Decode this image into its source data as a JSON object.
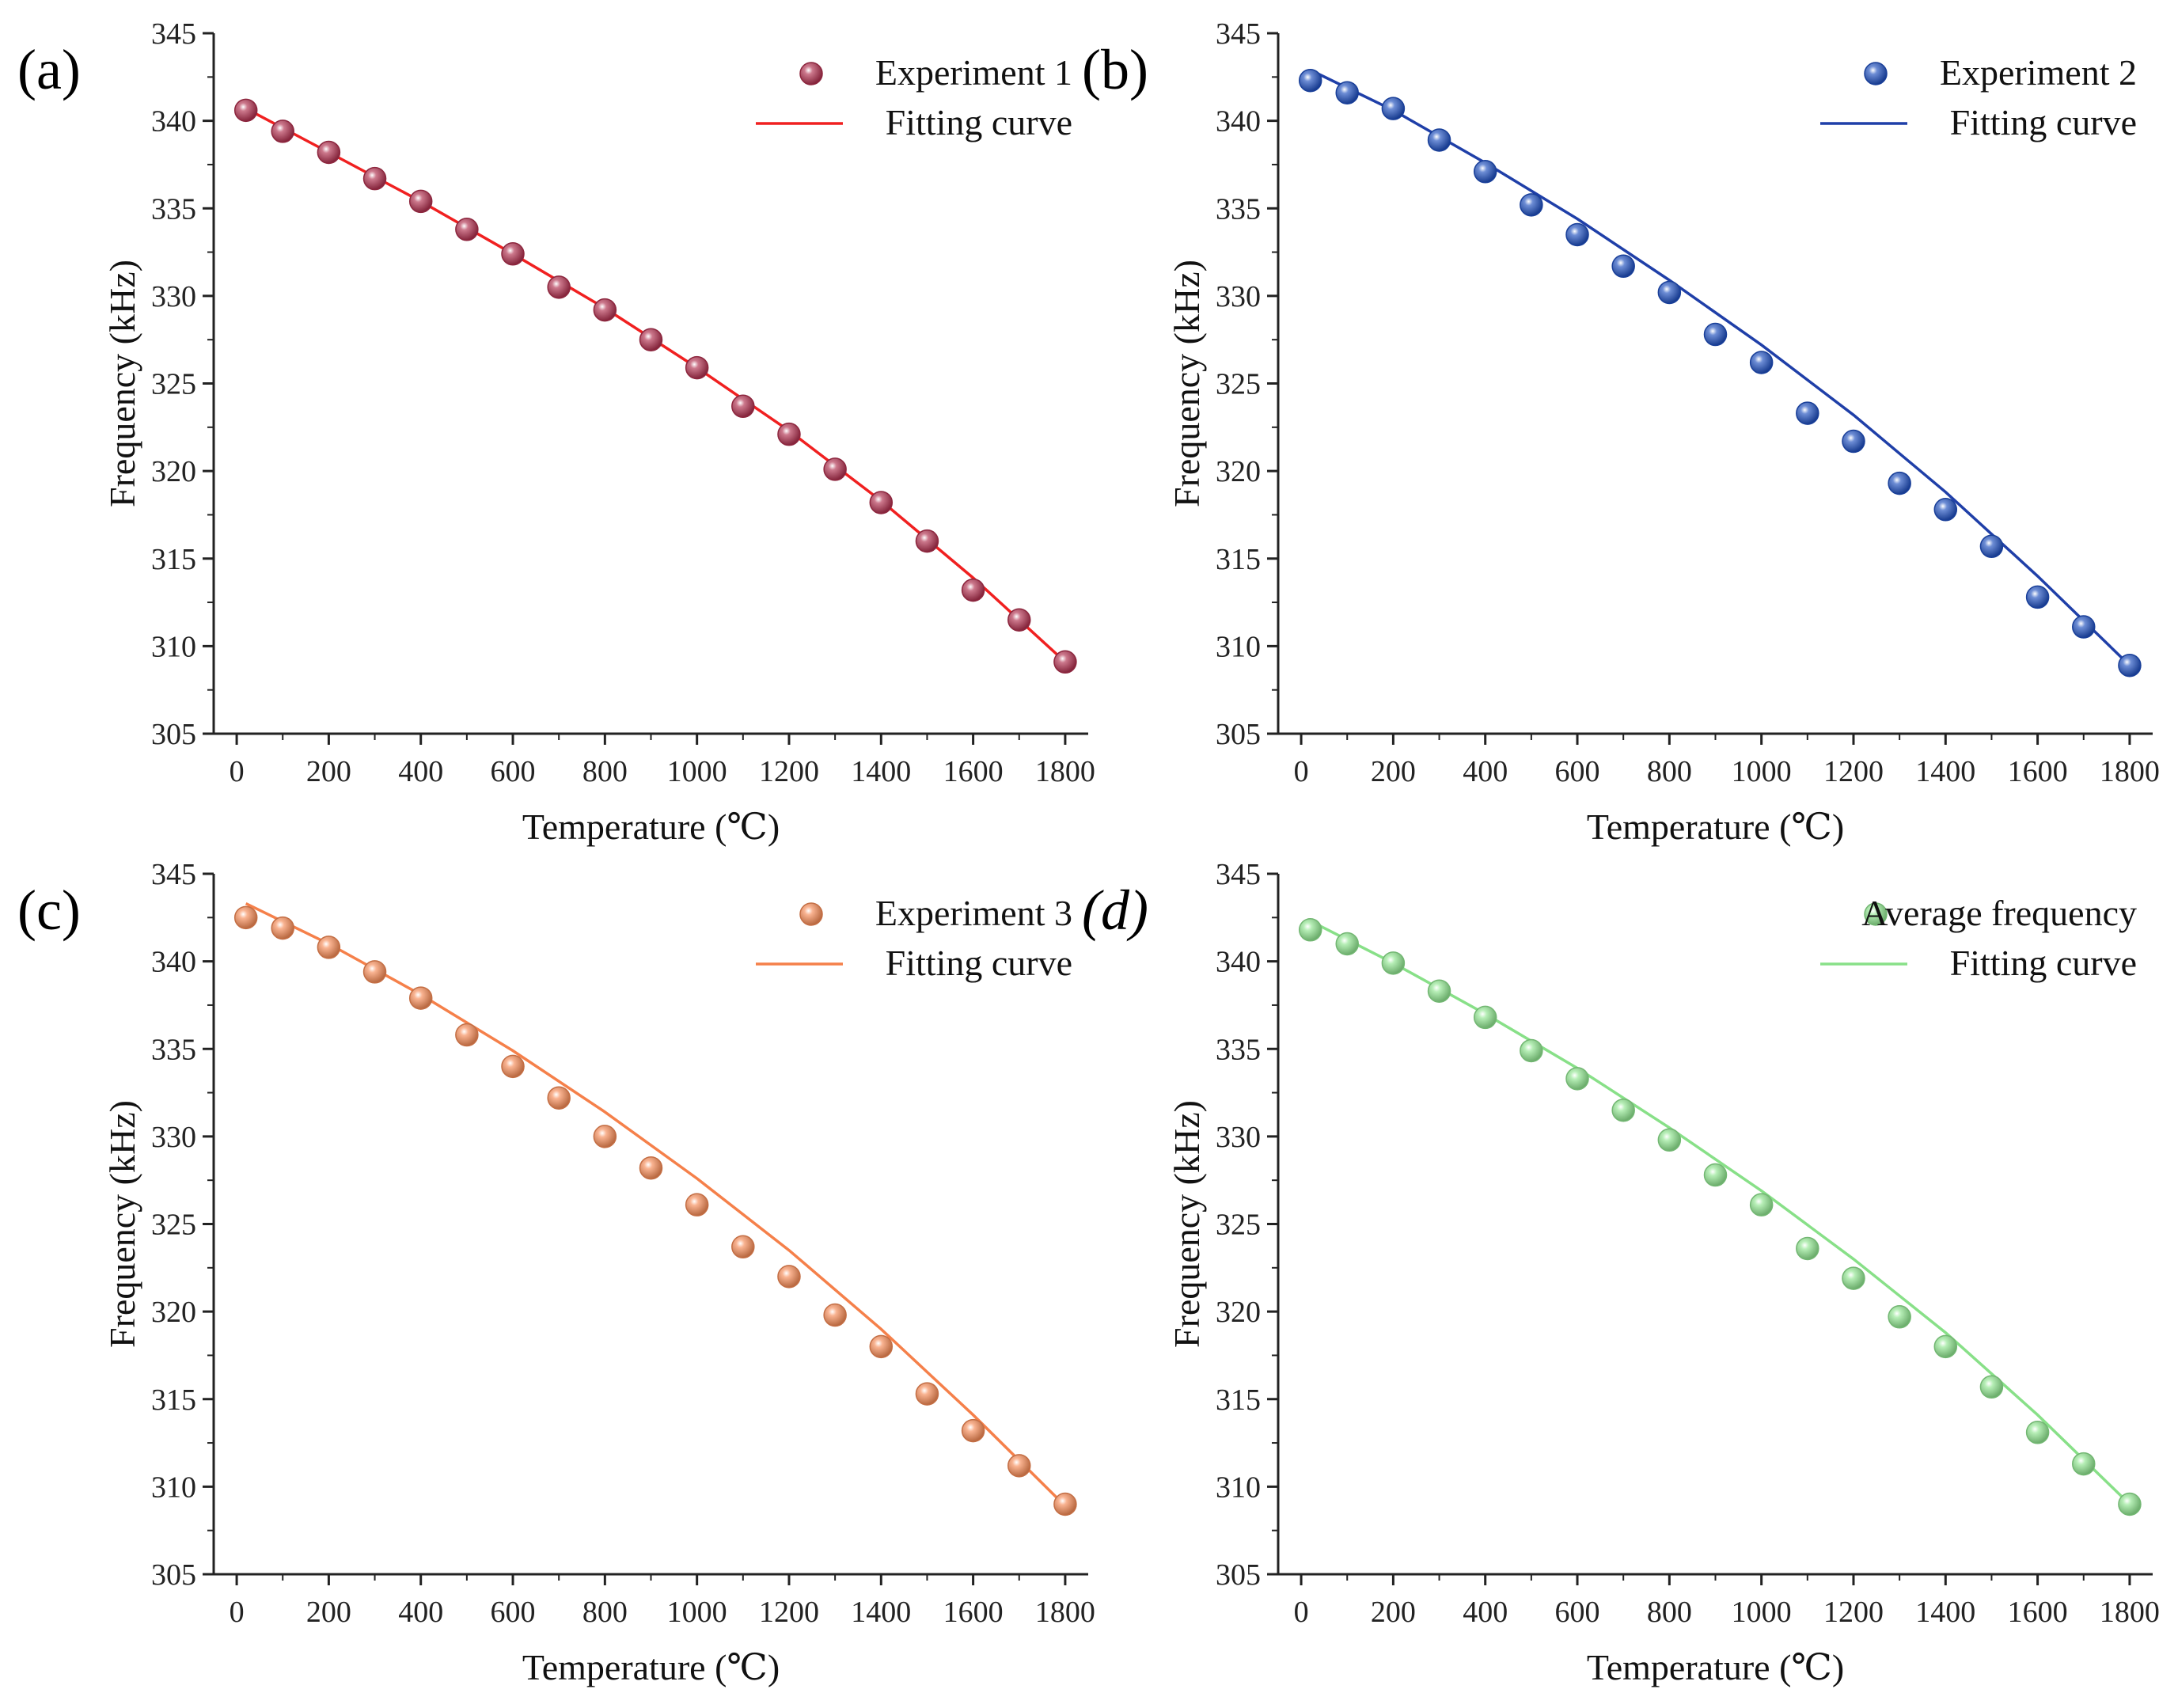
{
  "figure": {
    "panels": [
      {
        "label": "(a)",
        "label_italic": false,
        "legend_marker": "Experiment 1",
        "legend_line": "Fitting curve",
        "xlabel": "Temperature (℃)",
        "ylabel": "Frequency (kHz)",
        "color": "#b0304e",
        "line_color": "#f02020"
      },
      {
        "label": "(b)",
        "label_italic": false,
        "legend_marker": "Experiment 2",
        "legend_line": "Fitting curve",
        "xlabel": "Temperature (℃)",
        "ylabel": "Frequency (kHz)",
        "color": "#1f4fbf",
        "line_color": "#1f3fa8"
      },
      {
        "label": "(c)",
        "label_italic": false,
        "legend_marker": "Experiment 3",
        "legend_line": "Fitting curve",
        "xlabel": "Temperature (℃)",
        "ylabel": "Frequency (kHz)",
        "color": "#f58a55",
        "line_color": "#f5804a"
      },
      {
        "label": "(d)",
        "label_italic": true,
        "legend_marker": "Average frequency",
        "legend_line": "Fitting curve",
        "xlabel": "Temperature (℃)",
        "ylabel": "Frequency (kHz)",
        "color": "#8ee58e",
        "line_color": "#88e088"
      }
    ]
  },
  "chart_data": [
    {
      "type": "scatter",
      "title": "",
      "xlabel": "Temperature (℃)",
      "ylabel": "Frequency (kHz)",
      "xlim": [
        -50,
        1850
      ],
      "ylim": [
        305,
        345
      ],
      "xticks": [
        0,
        200,
        400,
        600,
        800,
        1000,
        1200,
        1400,
        1600,
        1800
      ],
      "yticks": [
        305,
        310,
        315,
        320,
        325,
        330,
        335,
        340,
        345
      ],
      "legend_position": "top-right",
      "series": [
        {
          "name": "Experiment 1",
          "kind": "scatter",
          "x": [
            20,
            100,
            200,
            300,
            400,
            500,
            600,
            700,
            800,
            900,
            1000,
            1100,
            1200,
            1300,
            1400,
            1500,
            1600,
            1700,
            1800
          ],
          "values": [
            340.6,
            339.4,
            338.2,
            336.7,
            335.4,
            333.8,
            332.4,
            330.5,
            329.2,
            327.5,
            325.9,
            323.7,
            322.1,
            320.1,
            318.2,
            316.0,
            313.2,
            311.5,
            309.1
          ]
        },
        {
          "name": "Fitting curve",
          "kind": "line",
          "x": [
            20,
            200,
            400,
            600,
            800,
            1000,
            1200,
            1400,
            1600,
            1800
          ],
          "values": [
            340.7,
            338.2,
            335.4,
            332.4,
            329.3,
            325.9,
            322.3,
            318.3,
            313.9,
            309.1
          ]
        }
      ]
    },
    {
      "type": "scatter",
      "title": "",
      "xlabel": "Temperature (℃)",
      "ylabel": "Frequency (kHz)",
      "xlim": [
        -50,
        1850
      ],
      "ylim": [
        305,
        345
      ],
      "xticks": [
        0,
        200,
        400,
        600,
        800,
        1000,
        1200,
        1400,
        1600,
        1800
      ],
      "yticks": [
        305,
        310,
        315,
        320,
        325,
        330,
        335,
        340,
        345
      ],
      "legend_position": "top-right",
      "series": [
        {
          "name": "Experiment 2",
          "kind": "scatter",
          "x": [
            20,
            100,
            200,
            300,
            400,
            500,
            600,
            700,
            800,
            900,
            1000,
            1100,
            1200,
            1300,
            1400,
            1500,
            1600,
            1700,
            1800
          ],
          "values": [
            342.3,
            341.6,
            340.7,
            338.9,
            337.1,
            335.2,
            333.5,
            331.7,
            330.2,
            327.8,
            326.2,
            323.3,
            321.7,
            319.3,
            317.8,
            315.7,
            312.8,
            311.1,
            308.9
          ]
        },
        {
          "name": "Fitting curve",
          "kind": "line",
          "x": [
            20,
            200,
            400,
            600,
            800,
            1000,
            1200,
            1400,
            1600,
            1800
          ],
          "values": [
            342.9,
            340.6,
            337.6,
            334.4,
            330.9,
            327.2,
            323.2,
            318.8,
            314.0,
            308.9
          ]
        }
      ]
    },
    {
      "type": "scatter",
      "title": "",
      "xlabel": "Temperature (℃)",
      "ylabel": "Frequency (kHz)",
      "xlim": [
        -50,
        1850
      ],
      "ylim": [
        305,
        345
      ],
      "xticks": [
        0,
        200,
        400,
        600,
        800,
        1000,
        1200,
        1400,
        1600,
        1800
      ],
      "yticks": [
        305,
        310,
        315,
        320,
        325,
        330,
        335,
        340,
        345
      ],
      "legend_position": "top-right",
      "series": [
        {
          "name": "Experiment 3",
          "kind": "scatter",
          "x": [
            20,
            100,
            200,
            300,
            400,
            500,
            600,
            700,
            800,
            900,
            1000,
            1100,
            1200,
            1300,
            1400,
            1500,
            1600,
            1700,
            1800
          ],
          "values": [
            342.5,
            341.9,
            340.8,
            339.4,
            337.9,
            335.8,
            334.0,
            332.2,
            330.0,
            328.2,
            326.1,
            323.7,
            322.0,
            319.8,
            318.0,
            315.3,
            313.2,
            311.2,
            309.0
          ]
        },
        {
          "name": "Fitting curve",
          "kind": "line",
          "x": [
            20,
            200,
            400,
            600,
            800,
            1000,
            1200,
            1400,
            1600,
            1800
          ],
          "values": [
            343.3,
            341.0,
            338.1,
            334.9,
            331.4,
            327.6,
            323.5,
            319.0,
            314.1,
            308.9
          ]
        }
      ]
    },
    {
      "type": "scatter",
      "title": "",
      "xlabel": "Temperature (℃)",
      "ylabel": "Frequency (kHz)",
      "xlim": [
        -50,
        1850
      ],
      "ylim": [
        305,
        345
      ],
      "xticks": [
        0,
        200,
        400,
        600,
        800,
        1000,
        1200,
        1400,
        1600,
        1800
      ],
      "yticks": [
        305,
        310,
        315,
        320,
        325,
        330,
        335,
        340,
        345
      ],
      "legend_position": "top-right",
      "series": [
        {
          "name": "Average frequency",
          "kind": "scatter",
          "x": [
            20,
            100,
            200,
            300,
            400,
            500,
            600,
            700,
            800,
            900,
            1000,
            1100,
            1200,
            1300,
            1400,
            1500,
            1600,
            1700,
            1800
          ],
          "values": [
            341.8,
            341.0,
            339.9,
            338.3,
            336.8,
            334.9,
            333.3,
            331.5,
            329.8,
            327.8,
            326.1,
            323.6,
            321.9,
            319.7,
            318.0,
            315.7,
            313.1,
            311.3,
            309.0
          ]
        },
        {
          "name": "Fitting curve",
          "kind": "line",
          "x": [
            20,
            200,
            400,
            600,
            800,
            1000,
            1200,
            1400,
            1600,
            1800
          ],
          "values": [
            342.3,
            339.9,
            337.0,
            333.9,
            330.5,
            326.9,
            323.0,
            318.8,
            314.1,
            309.0
          ]
        }
      ]
    }
  ]
}
